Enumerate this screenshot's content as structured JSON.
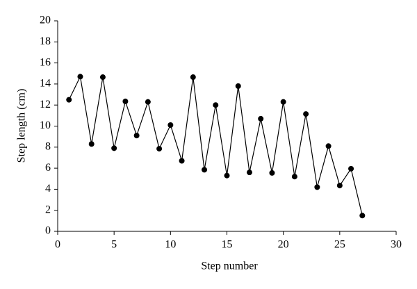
{
  "chart_data": {
    "type": "line",
    "x_label": "Step number",
    "y_label": "Step length (cm)",
    "x": [
      1,
      2,
      3,
      4,
      5,
      6,
      7,
      8,
      9,
      10,
      11,
      12,
      13,
      14,
      15,
      16,
      17,
      18,
      19,
      20,
      21,
      22,
      23,
      24,
      25,
      26,
      27
    ],
    "series": [
      {
        "color": "#000000",
        "values": [
          12.5,
          14.7,
          8.3,
          14.65,
          7.9,
          12.35,
          9.1,
          12.3,
          7.85,
          10.1,
          6.7,
          14.65,
          5.85,
          12.0,
          5.3,
          13.8,
          5.6,
          10.7,
          5.55,
          12.3,
          5.2,
          11.15,
          4.2,
          8.1,
          4.35,
          5.95,
          1.5
        ]
      }
    ],
    "xlim": [
      0,
      30
    ],
    "xticks": [
      0,
      5,
      10,
      15,
      20,
      25,
      30
    ],
    "ylim": [
      0,
      20
    ],
    "yticks": [
      0,
      2,
      4,
      6,
      8,
      10,
      12,
      14,
      16,
      18,
      20
    ]
  }
}
